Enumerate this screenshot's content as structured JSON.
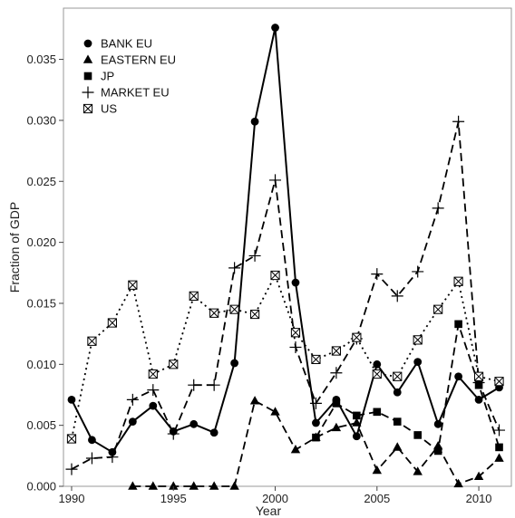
{
  "chart_data": {
    "type": "line",
    "xlabel": "Year",
    "ylabel": "Fraction of GDP",
    "xlim": [
      1989.6,
      2011.6
    ],
    "ylim": [
      0,
      0.0392
    ],
    "x_ticks": [
      1990,
      1995,
      2000,
      2005,
      2010
    ],
    "y_ticks": [
      0.0,
      0.005,
      0.01,
      0.015,
      0.02,
      0.025,
      0.03,
      0.035
    ],
    "y_tick_labels": [
      "0.000",
      "0.005",
      "0.010",
      "0.015",
      "0.020",
      "0.025",
      "0.030",
      "0.035"
    ],
    "grid": false,
    "legend_position": "top-left",
    "series": [
      {
        "name": "BANK EU",
        "marker": "circle",
        "line": "solid",
        "x": [
          1990,
          1991,
          1992,
          1993,
          1994,
          1995,
          1996,
          1997,
          1998,
          1999,
          2000,
          2001,
          2002,
          2003,
          2004,
          2005,
          2006,
          2007,
          2008,
          2009,
          2010,
          2011
        ],
        "values": [
          0.0071,
          0.0038,
          0.0028,
          0.0053,
          0.0066,
          0.0045,
          0.0051,
          0.0044,
          0.0101,
          0.0299,
          0.0376,
          0.0167,
          0.0052,
          0.0071,
          0.0041,
          0.01,
          0.0077,
          0.0102,
          0.0051,
          0.009,
          0.0071,
          0.0081
        ]
      },
      {
        "name": "EASTERN EU",
        "marker": "triangle",
        "line": "dashed",
        "x": [
          1993,
          1994,
          1995,
          1996,
          1997,
          1998,
          1999,
          2000,
          2001,
          2002,
          2003,
          2004,
          2005,
          2006,
          2007,
          2008,
          2009,
          2010,
          2011
        ],
        "values": [
          0.0,
          0.0,
          0.0,
          0.0,
          0.0,
          0.0,
          0.007,
          0.0061,
          0.003,
          0.004,
          0.0048,
          0.0052,
          0.0013,
          0.0032,
          0.0012,
          0.0033,
          0.0002,
          0.0008,
          0.0023
        ]
      },
      {
        "name": "JP",
        "marker": "square",
        "line": "dashed",
        "x": [
          2002,
          2003,
          2004,
          2005,
          2006,
          2007,
          2008,
          2009,
          2010,
          2011
        ],
        "values": [
          0.004,
          0.0068,
          0.0058,
          0.0061,
          0.0053,
          0.0042,
          0.0029,
          0.0133,
          0.0083,
          0.0032
        ]
      },
      {
        "name": "MARKET EU",
        "marker": "plus",
        "line": "dashed",
        "x": [
          1990,
          1991,
          1992,
          1993,
          1994,
          1995,
          1996,
          1997,
          1998,
          1999,
          2000,
          2001,
          2002,
          2003,
          2004,
          2005,
          2006,
          2007,
          2008,
          2009,
          2010,
          2011
        ],
        "values": [
          0.0014,
          0.0023,
          0.0024,
          0.0071,
          0.0079,
          0.0043,
          0.0083,
          0.0083,
          0.0179,
          0.0189,
          0.0251,
          0.0114,
          0.0068,
          0.0093,
          0.0121,
          0.0174,
          0.0156,
          0.0176,
          0.0228,
          0.0299,
          0.0085,
          0.0046
        ]
      },
      {
        "name": "US",
        "marker": "boxed-x",
        "line": "dotted",
        "x": [
          1990,
          1991,
          1992,
          1993,
          1994,
          1995,
          1996,
          1997,
          1998,
          1999,
          2000,
          2001,
          2002,
          2003,
          2004,
          2005,
          2006,
          2007,
          2008,
          2009,
          2010,
          2011
        ],
        "values": [
          0.0039,
          0.0119,
          0.0134,
          0.0165,
          0.0092,
          0.01,
          0.0156,
          0.0142,
          0.0145,
          0.0141,
          0.0173,
          0.0126,
          0.0104,
          0.0111,
          0.0122,
          0.0092,
          0.009,
          0.012,
          0.0145,
          0.0168,
          0.009,
          0.0086
        ]
      }
    ]
  }
}
